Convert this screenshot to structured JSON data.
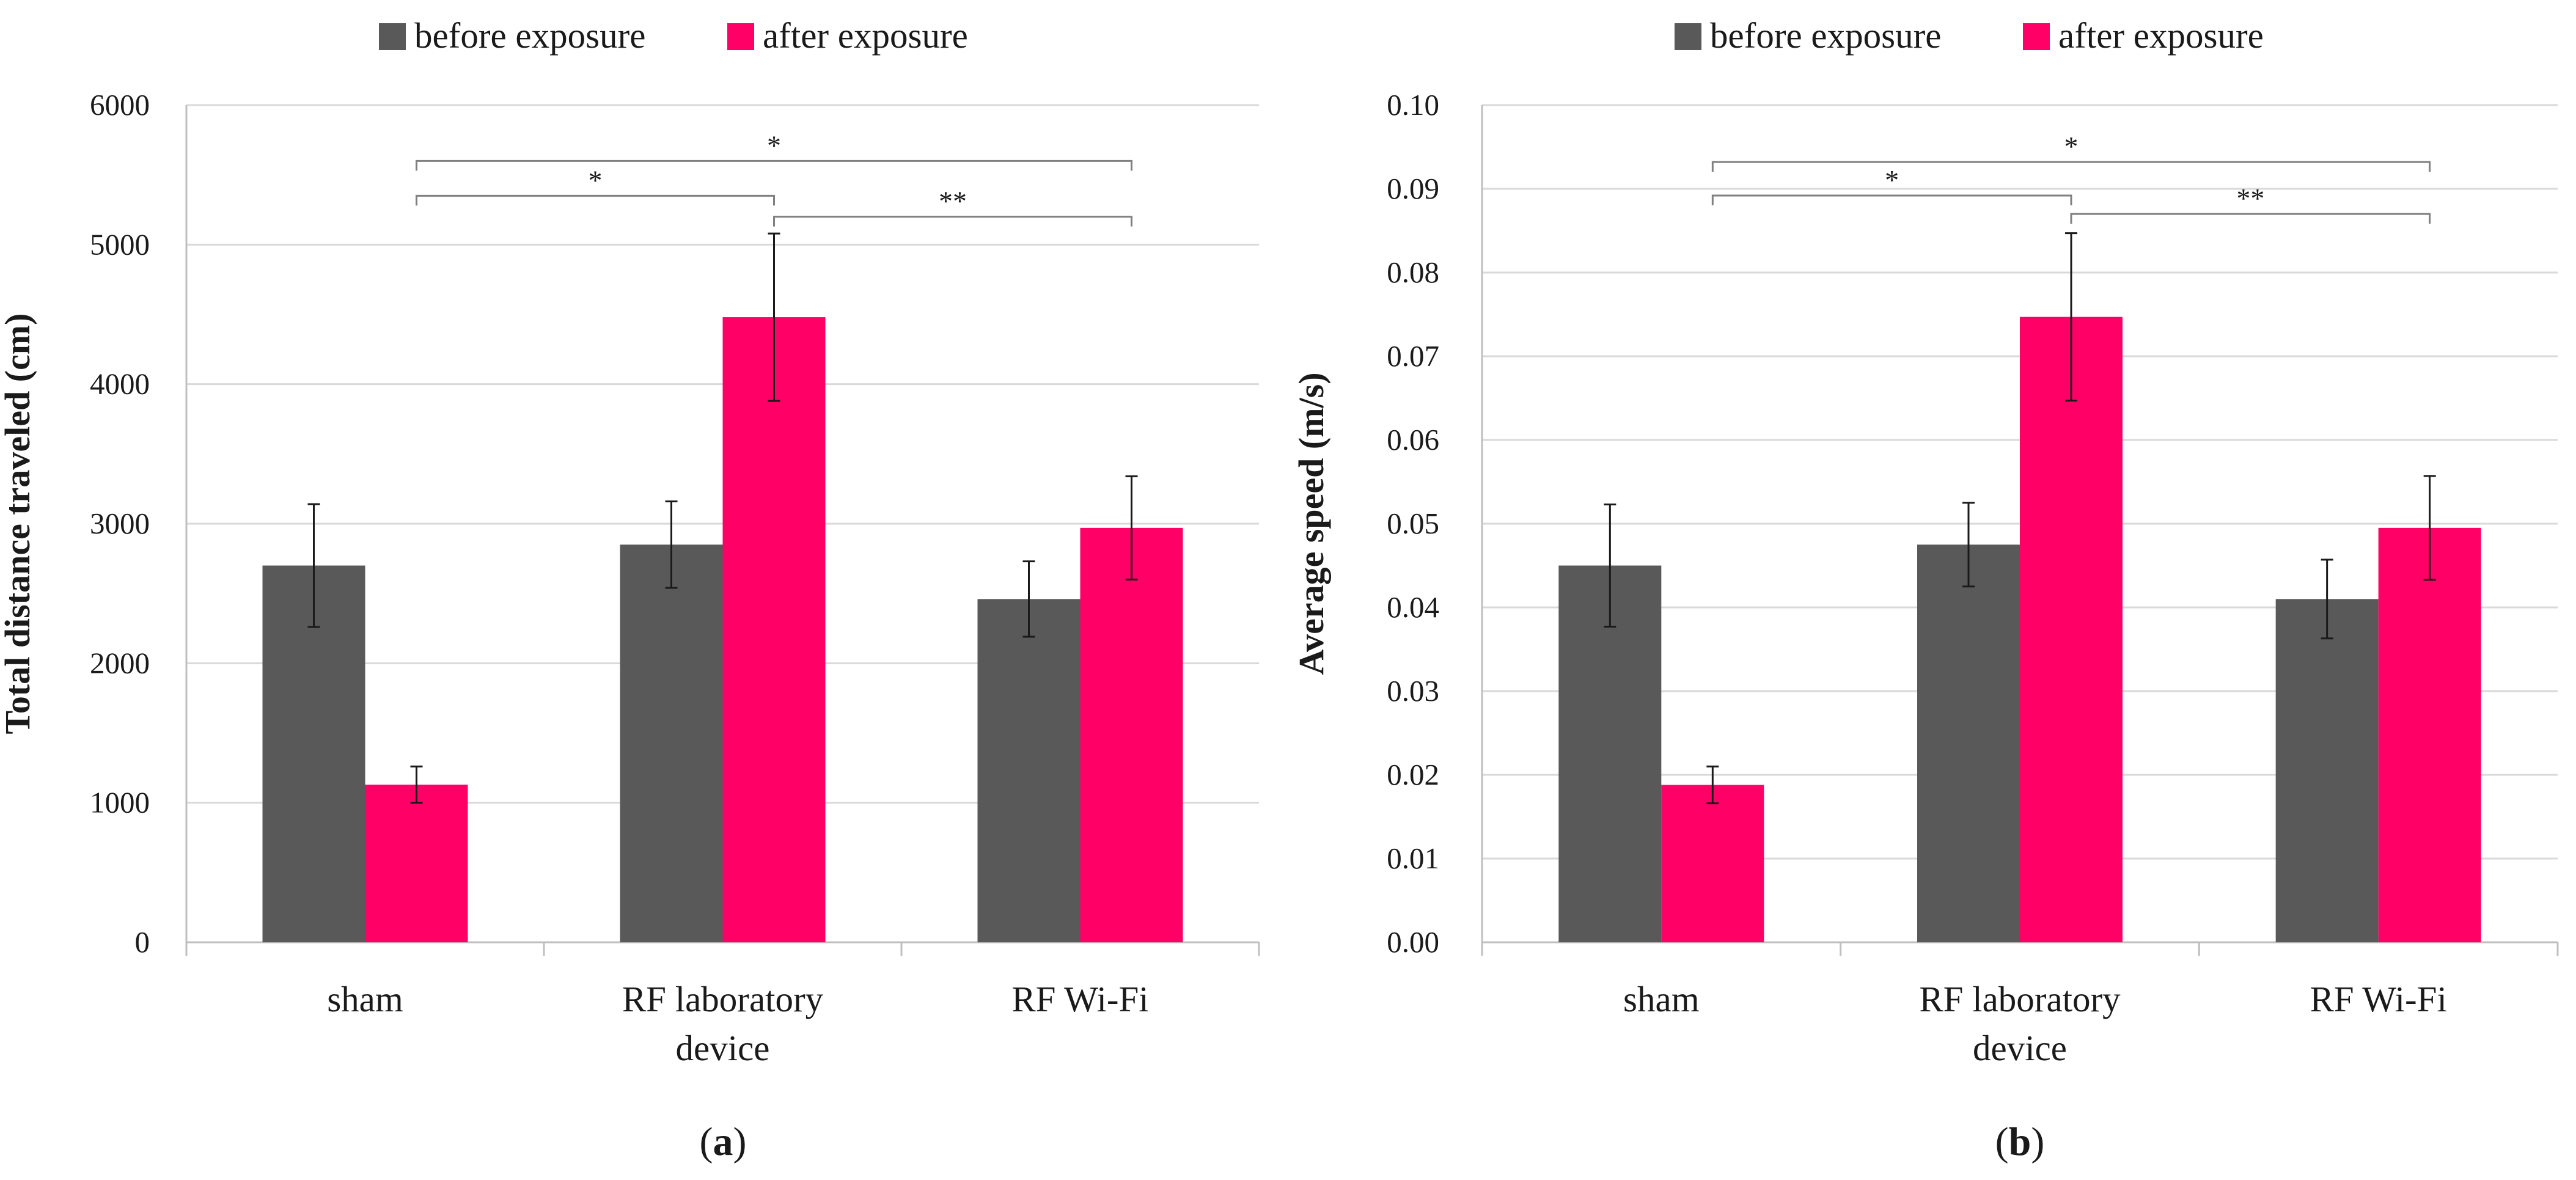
{
  "chart_data": [
    {
      "type": "bar",
      "panel_label": "a",
      "categories": [
        "sham",
        "RF laboratory device",
        "RF Wi-Fi"
      ],
      "category_lines": [
        [
          "sham"
        ],
        [
          "RF laboratory",
          "device"
        ],
        [
          "RF Wi-Fi"
        ]
      ],
      "series": [
        {
          "name": "before exposure",
          "values": [
            2700,
            2850,
            2460
          ],
          "errors": [
            440,
            310,
            270
          ],
          "color": "#595959"
        },
        {
          "name": "after exposure",
          "values": [
            1130,
            4480,
            2970
          ],
          "errors": [
            130,
            600,
            370
          ],
          "color": "#ff0066"
        }
      ],
      "ylabel": "Total distance traveled (cm)",
      "ylim": [
        0,
        6000
      ],
      "yticks": [
        0,
        1000,
        2000,
        3000,
        4000,
        5000,
        6000
      ],
      "ytick_labels": [
        "0",
        "1000",
        "2000",
        "3000",
        "4000",
        "5000",
        "6000"
      ],
      "grid": true,
      "legend": "top-center",
      "significance": [
        {
          "from": 0,
          "to": 2,
          "level": 5600,
          "label": "*"
        },
        {
          "from": 0,
          "to": 1,
          "level": 5350,
          "label": "*"
        },
        {
          "from": 1,
          "to": 2,
          "level": 5200,
          "label": "**"
        }
      ]
    },
    {
      "type": "bar",
      "panel_label": "b",
      "categories": [
        "sham",
        "RF laboratory device",
        "RF Wi-Fi"
      ],
      "category_lines": [
        [
          "sham"
        ],
        [
          "RF laboratory",
          "device"
        ],
        [
          "RF Wi-Fi"
        ]
      ],
      "series": [
        {
          "name": "before exposure",
          "values": [
            0.045,
            0.0475,
            0.041
          ],
          "errors": [
            0.0073,
            0.005,
            0.0047
          ],
          "color": "#595959"
        },
        {
          "name": "after exposure",
          "values": [
            0.0188,
            0.0747,
            0.0495
          ],
          "errors": [
            0.0022,
            0.01,
            0.0062
          ],
          "color": "#ff0066"
        }
      ],
      "ylabel": "Average speed (m/s)",
      "ylim": [
        0,
        0.1
      ],
      "yticks": [
        0,
        0.01,
        0.02,
        0.03,
        0.04,
        0.05,
        0.06,
        0.07,
        0.08,
        0.09,
        0.1
      ],
      "ytick_labels": [
        "0.00",
        "0.01",
        "0.02",
        "0.03",
        "0.04",
        "0.05",
        "0.06",
        "0.07",
        "0.08",
        "0.09",
        "0.10"
      ],
      "grid": true,
      "legend": "top-center",
      "significance": [
        {
          "from": 0,
          "to": 2,
          "level": 0.0932,
          "label": "*"
        },
        {
          "from": 0,
          "to": 1,
          "level": 0.0892,
          "label": "*"
        },
        {
          "from": 1,
          "to": 2,
          "level": 0.087,
          "label": "**"
        }
      ]
    }
  ]
}
